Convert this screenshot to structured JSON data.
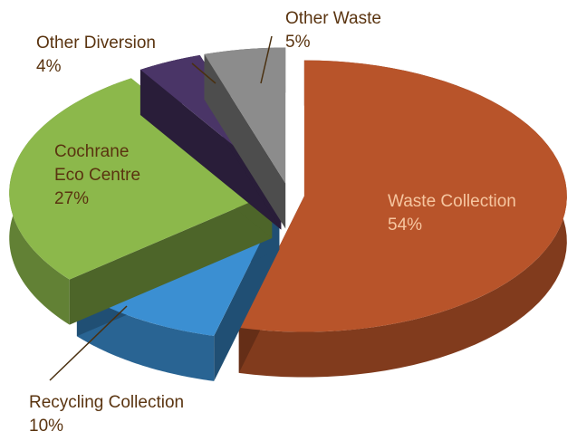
{
  "chart_data": {
    "type": "pie3d",
    "categories": [
      "Waste Collection",
      "Recycling Collection",
      "Cochrane Eco Centre",
      "Other Diversion",
      "Other Waste"
    ],
    "values": [
      54,
      10,
      27,
      4,
      5
    ],
    "value_labels": [
      "54%",
      "10%",
      "27%",
      "4%",
      "5%"
    ],
    "colors": [
      "#b8542a",
      "#3b8fd2",
      "#8cb84b",
      "#4a3567",
      "#8c8c8c"
    ]
  }
}
